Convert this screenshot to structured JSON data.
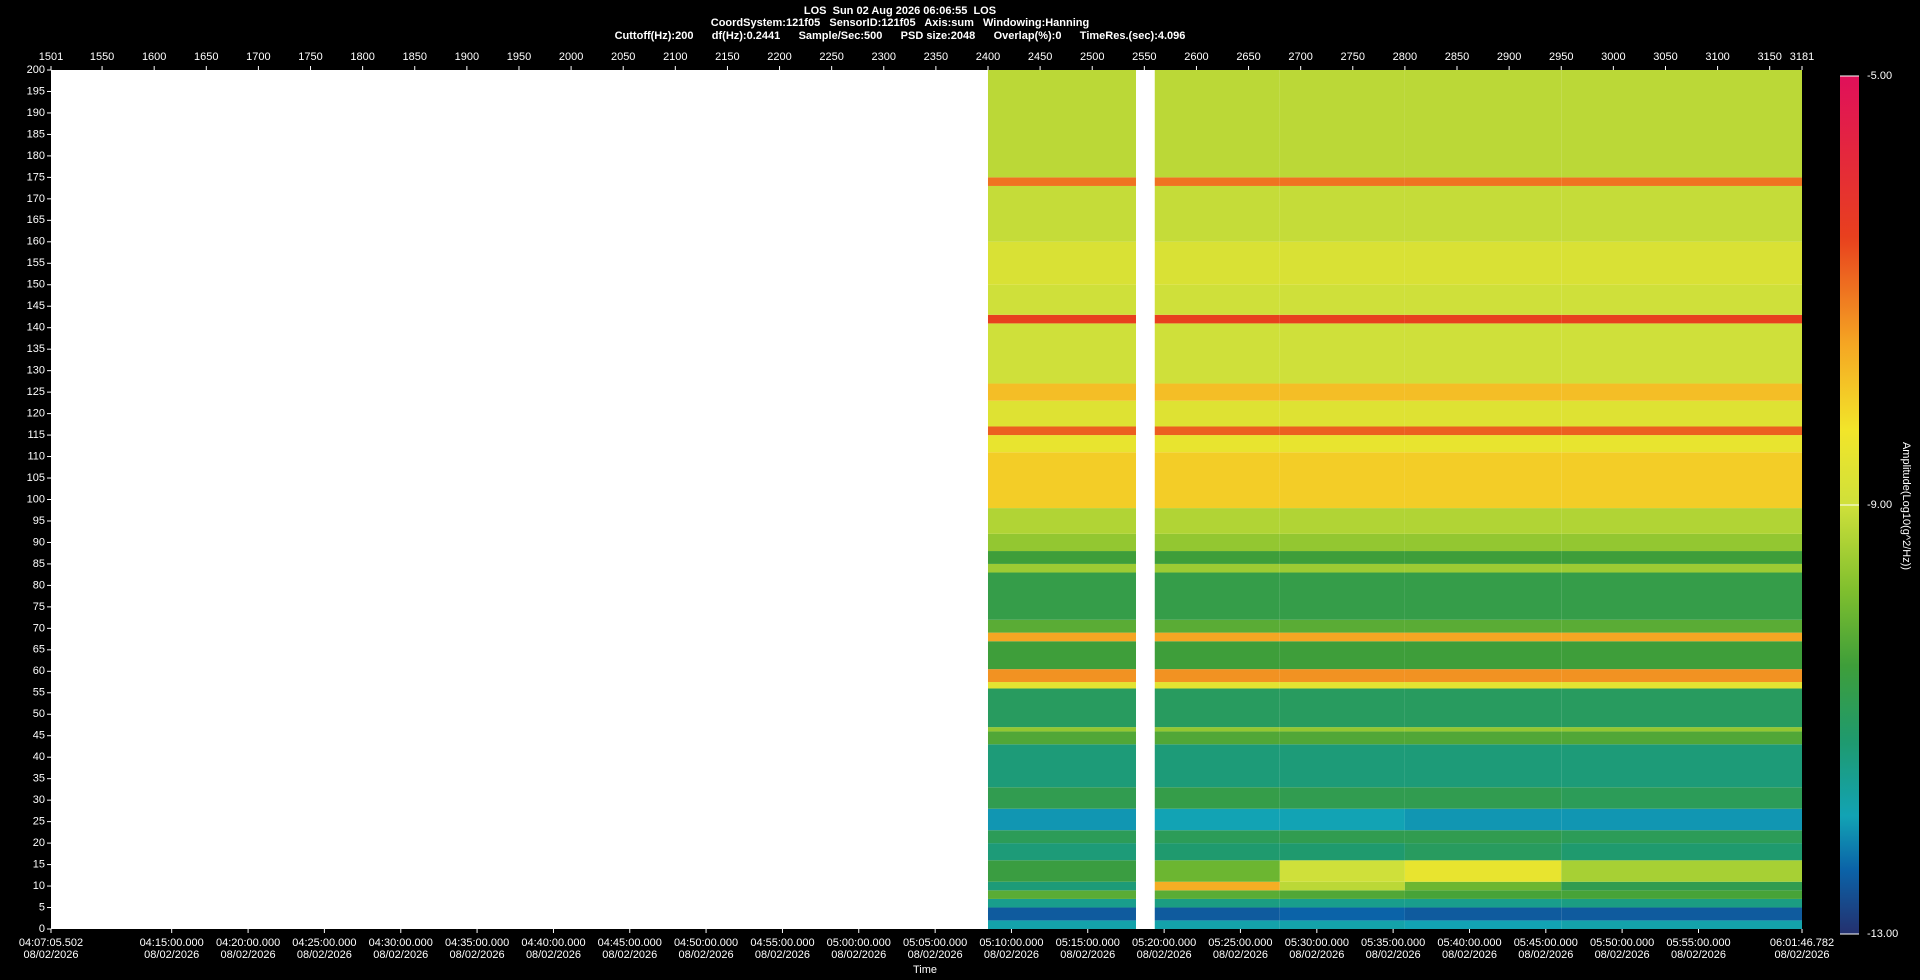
{
  "chart_data": {
    "type": "heatmap",
    "title": "LOS  Sun 02 Aug 2026 06:06:55  LOS",
    "info_lines": [
      "CoordSystem:121f05   SensorID:121f05   Axis:sum   Windowing:Hanning",
      "Cuttoff(Hz):200      df(Hz):0.2441      Sample/Sec:500      PSD size:2048      Overlap(%):0      TimeRes.(sec):4.096"
    ],
    "x_label": "Time",
    "colorbar_label": "Amplitude(Log10(g^2/Hz))",
    "xlim": [
      1501,
      3181
    ],
    "xticks": [
      1501,
      1550,
      1600,
      1650,
      1700,
      1750,
      1800,
      1850,
      1900,
      1950,
      2000,
      2050,
      2100,
      2150,
      2200,
      2250,
      2300,
      2350,
      2400,
      2450,
      2500,
      2550,
      2600,
      2650,
      2700,
      2750,
      2800,
      2850,
      2900,
      2950,
      3000,
      3050,
      3100,
      3150,
      3181
    ],
    "x2ticks": [
      {
        "value": 1501,
        "label": "04:07:05.502"
      },
      {
        "value": 1616.8,
        "label": "04:15:00.000"
      },
      {
        "value": 1690.1,
        "label": "04:20:00.000"
      },
      {
        "value": 1763.3,
        "label": "04:25:00.000"
      },
      {
        "value": 1836.6,
        "label": "04:30:00.000"
      },
      {
        "value": 1909.8,
        "label": "04:35:00.000"
      },
      {
        "value": 1983.1,
        "label": "04:40:00.000"
      },
      {
        "value": 2056.3,
        "label": "04:45:00.000"
      },
      {
        "value": 2129.5,
        "label": "04:50:00.000"
      },
      {
        "value": 2202.8,
        "label": "04:55:00.000"
      },
      {
        "value": 2276.0,
        "label": "05:00:00.000"
      },
      {
        "value": 2349.3,
        "label": "05:05:00.000"
      },
      {
        "value": 2422.5,
        "label": "05:10:00.000"
      },
      {
        "value": 2495.7,
        "label": "05:15:00.000"
      },
      {
        "value": 2569.0,
        "label": "05:20:00.000"
      },
      {
        "value": 2642.2,
        "label": "05:25:00.000"
      },
      {
        "value": 2715.5,
        "label": "05:30:00.000"
      },
      {
        "value": 2788.7,
        "label": "05:35:00.000"
      },
      {
        "value": 2862.0,
        "label": "05:40:00.000"
      },
      {
        "value": 2935.2,
        "label": "05:45:00.000"
      },
      {
        "value": 3008.4,
        "label": "05:50:00.000"
      },
      {
        "value": 3081.7,
        "label": "05:55:00.000"
      },
      {
        "value": 3181,
        "label": "06:01:46.782"
      }
    ],
    "x2tick_dates": [
      "08/02/2026",
      "08/02/2026",
      "08/02/2026",
      "08/02/2026",
      "08/02/2026",
      "08/02/2026",
      "08/02/2026",
      "08/02/2026",
      "08/02/2026",
      "08/02/2026",
      "08/02/2026",
      "08/02/2026",
      "08/02/2026",
      "08/02/2026",
      "08/02/2026",
      "08/02/2026",
      "08/02/2026",
      "08/02/2026",
      "08/02/2026",
      "08/02/2026",
      "08/02/2026",
      "08/02/2026",
      "08/02/2026"
    ],
    "ylim": [
      0,
      200
    ],
    "yticks": [
      0,
      5,
      10,
      15,
      20,
      25,
      30,
      35,
      40,
      45,
      50,
      55,
      60,
      65,
      70,
      75,
      80,
      85,
      90,
      95,
      100,
      105,
      110,
      115,
      120,
      125,
      130,
      135,
      140,
      145,
      150,
      155,
      160,
      165,
      170,
      175,
      180,
      185,
      190,
      195,
      200
    ],
    "clim": [
      -13,
      -5
    ],
    "cticks": [
      {
        "value": -5,
        "label": "-5.00"
      },
      {
        "value": -9,
        "label": "-9.00"
      },
      {
        "value": -13,
        "label": "-13.00"
      }
    ],
    "colorscale": [
      [
        -13,
        "#24306e"
      ],
      [
        -12.4,
        "#0b63a8"
      ],
      [
        -11.9,
        "#12a3b4"
      ],
      [
        -11.2,
        "#1f9a6e"
      ],
      [
        -10.5,
        "#3e9e3a"
      ],
      [
        -9.8,
        "#7fbf2e"
      ],
      [
        -9,
        "#cfe03a"
      ],
      [
        -8.3,
        "#f2e52a"
      ],
      [
        -7.5,
        "#f5a623"
      ],
      [
        -6.5,
        "#e8401e"
      ],
      [
        -5,
        "#e0105a"
      ]
    ],
    "xbins": [
      2400,
      2542,
      2560,
      2680,
      2800,
      2950,
      3181
    ],
    "ybins": [
      0,
      2,
      5,
      7,
      9,
      11,
      16,
      20,
      23,
      28,
      33,
      43,
      46,
      47,
      56,
      57.5,
      60.5,
      67,
      69,
      72,
      83,
      85,
      88,
      92,
      98,
      111,
      115,
      117,
      123,
      127,
      141,
      143,
      150,
      160,
      173,
      175,
      200
    ],
    "z": [
      [
        -11.8,
        null,
        -11.8,
        -11.8,
        -11.9,
        -11.8
      ],
      [
        -12.5,
        null,
        -12.5,
        -12.4,
        -12.5,
        -12.5
      ],
      [
        -11.5,
        null,
        -11.4,
        -11.5,
        -11.5,
        -11.4
      ],
      [
        -10.2,
        null,
        -10.2,
        -10.3,
        -10.4,
        -10.4
      ],
      [
        -11.3,
        null,
        -7.6,
        -9.2,
        -10.0,
        -10.8
      ],
      [
        -10.6,
        null,
        -10.0,
        -9.0,
        -8.5,
        -9.4
      ],
      [
        -11.3,
        null,
        -11.2,
        -11.2,
        -11.0,
        -11.2
      ],
      [
        -10.9,
        null,
        -10.9,
        -10.8,
        -10.8,
        -10.9
      ],
      [
        -12.0,
        null,
        -11.9,
        -11.9,
        -12.0,
        -12.0
      ],
      [
        -10.8,
        null,
        -10.7,
        -10.8,
        -10.8,
        -10.9
      ],
      [
        -11.3,
        null,
        -11.3,
        -11.3,
        -11.3,
        -11.3
      ],
      [
        -10.3,
        null,
        -10.3,
        -10.3,
        -10.3,
        -10.3
      ],
      [
        -9.6,
        null,
        -9.6,
        -9.6,
        -9.6,
        -9.6
      ],
      [
        -11.0,
        null,
        -11.0,
        -11.0,
        -11.0,
        -11.0
      ],
      [
        -8.6,
        null,
        -8.6,
        -8.6,
        -8.6,
        -8.6
      ],
      [
        -7.3,
        null,
        -7.3,
        -7.3,
        -7.3,
        -7.3
      ],
      [
        -10.5,
        null,
        -10.5,
        -10.5,
        -10.5,
        -10.5
      ],
      [
        -7.5,
        null,
        -7.5,
        -7.5,
        -7.5,
        -7.5
      ],
      [
        -10.2,
        null,
        -10.2,
        -10.2,
        -10.2,
        -10.2
      ],
      [
        -10.7,
        null,
        -10.7,
        -10.7,
        -10.7,
        -10.7
      ],
      [
        -9.5,
        null,
        -9.5,
        -9.5,
        -9.5,
        -9.5
      ],
      [
        -10.5,
        null,
        -10.5,
        -10.5,
        -10.5,
        -10.5
      ],
      [
        -9.6,
        null,
        -9.6,
        -9.6,
        -9.6,
        -9.6
      ],
      [
        -9.3,
        null,
        -9.3,
        -9.3,
        -9.3,
        -9.3
      ],
      [
        -8.0,
        null,
        -8.0,
        -8.0,
        -8.0,
        -8.0
      ],
      [
        -8.5,
        null,
        -8.5,
        -8.5,
        -8.5,
        -8.5
      ],
      [
        -6.8,
        null,
        -6.8,
        -6.8,
        -6.8,
        -6.8
      ],
      [
        -8.7,
        null,
        -8.7,
        -8.7,
        -8.7,
        -8.7
      ],
      [
        -7.8,
        null,
        -7.8,
        -7.8,
        -7.8,
        -7.8
      ],
      [
        -9.0,
        null,
        -9.0,
        -9.0,
        -9.0,
        -9.0
      ],
      [
        -6.5,
        null,
        -6.5,
        -6.5,
        -6.5,
        -6.5
      ],
      [
        -9.0,
        null,
        -9.0,
        -9.0,
        -9.0,
        -9.0
      ],
      [
        -8.8,
        null,
        -8.8,
        -8.8,
        -8.8,
        -8.8
      ],
      [
        -9.1,
        null,
        -9.1,
        -9.1,
        -9.1,
        -9.1
      ],
      [
        -7.0,
        null,
        -7.0,
        -7.0,
        -7.0,
        -7.0
      ],
      [
        -9.2,
        null,
        -9.2,
        -9.2,
        -9.2,
        -9.2
      ]
    ]
  }
}
